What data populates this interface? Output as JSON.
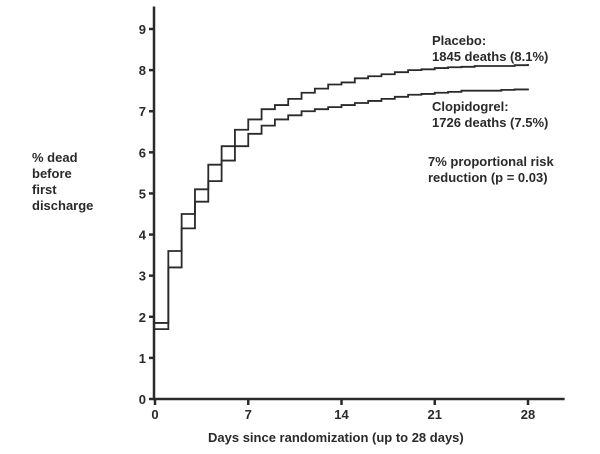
{
  "chart_data": {
    "type": "line",
    "step": true,
    "xlabel": "Days since randomization (up to 28 days)",
    "ylabel": "% dead before first discharge",
    "xlim": [
      0,
      30
    ],
    "ylim": [
      0,
      9.5
    ],
    "xticks": [
      0,
      7,
      14,
      21,
      28
    ],
    "yticks": [
      0,
      1,
      2,
      3,
      4,
      5,
      6,
      7,
      8,
      9
    ],
    "grid": false,
    "x": [
      0,
      1,
      2,
      3,
      4,
      5,
      6,
      7,
      8,
      9,
      10,
      11,
      12,
      13,
      14,
      15,
      16,
      17,
      18,
      19,
      20,
      21,
      22,
      23,
      24,
      25,
      26,
      27,
      28
    ],
    "series": [
      {
        "name": "Placebo",
        "values": [
          1.85,
          3.6,
          4.5,
          5.1,
          5.7,
          6.15,
          6.55,
          6.8,
          7.05,
          7.15,
          7.3,
          7.45,
          7.55,
          7.65,
          7.7,
          7.8,
          7.85,
          7.9,
          7.95,
          8.0,
          8.02,
          8.05,
          8.07,
          8.08,
          8.1,
          8.1,
          8.1,
          8.12,
          8.15
        ]
      },
      {
        "name": "Clopidogrel",
        "values": [
          1.7,
          3.2,
          4.15,
          4.8,
          5.3,
          5.8,
          6.15,
          6.45,
          6.65,
          6.8,
          6.9,
          7.0,
          7.05,
          7.1,
          7.15,
          7.2,
          7.25,
          7.3,
          7.35,
          7.4,
          7.42,
          7.45,
          7.47,
          7.5,
          7.5,
          7.5,
          7.52,
          7.53,
          7.55
        ]
      }
    ],
    "annotations": {
      "placebo_name": "Placebo:",
      "placebo_detail": "1845 deaths (8.1%)",
      "clopidogrel_name": "Clopidogrel:",
      "clopidogrel_detail": "1726 deaths (7.5%)",
      "reduction_line1": "7% proportional risk",
      "reduction_line2": "reduction (p = 0.03)"
    },
    "ylabel_lines": [
      "% dead",
      "before",
      "first",
      "discharge"
    ],
    "line_color": "#2a2a2a"
  }
}
